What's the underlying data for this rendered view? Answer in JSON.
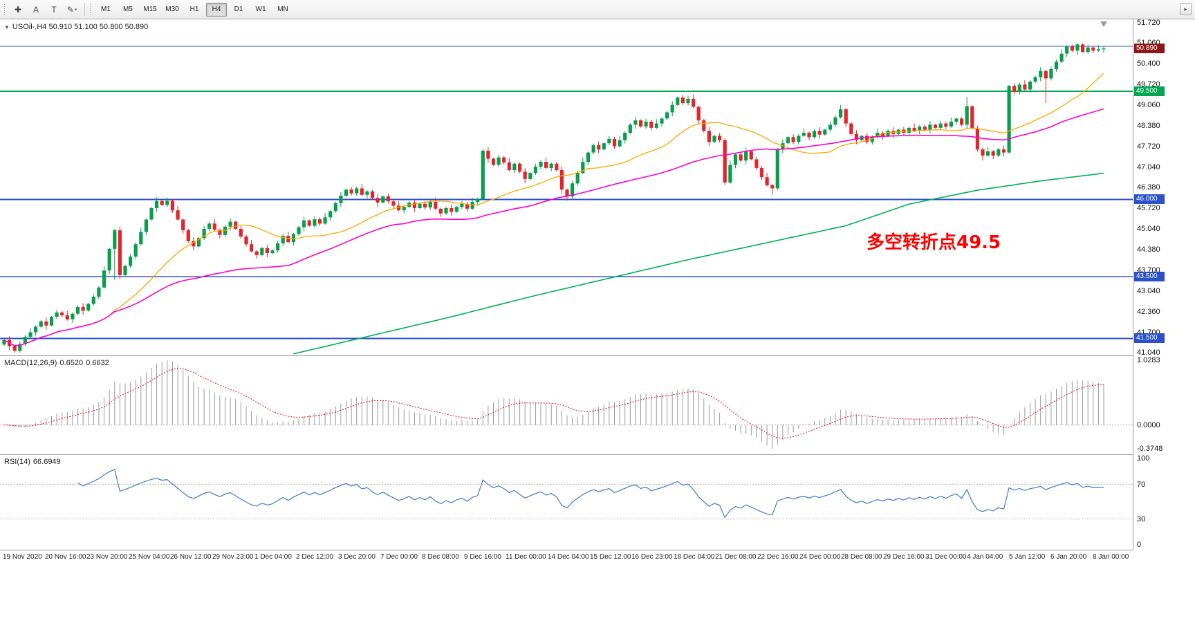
{
  "toolbar": {
    "tools": [
      {
        "name": "crosshair-tool",
        "glyph": "✚"
      },
      {
        "name": "text-a-tool",
        "glyph": "A"
      },
      {
        "name": "text-t-tool",
        "glyph": "T"
      },
      {
        "name": "shapes-tool",
        "glyph": "✎",
        "caret": "▾"
      }
    ],
    "timeframes": [
      "M1",
      "M5",
      "M15",
      "M30",
      "H1",
      "H4",
      "D1",
      "W1",
      "MN"
    ],
    "active_timeframe": "H4",
    "overflow_glyph": "▸"
  },
  "header": {
    "collapse_glyph": "▼",
    "symbol_period": "USOil-,H4",
    "ohlc": "50.910 51.100 50.800 50.890"
  },
  "annotation": {
    "text": "多空转折点49.5",
    "color": "#ff0000"
  },
  "price_axis": {
    "labels": [
      "51.720",
      "51.060",
      "50.400",
      "49.720",
      "49.060",
      "48.380",
      "47.720",
      "47.040",
      "46.380",
      "45.720",
      "45.040",
      "44.380",
      "43.700",
      "43.040",
      "42.360",
      "41.700",
      "41.040"
    ],
    "badges": [
      {
        "value": "50.890",
        "price": 50.89,
        "color": "#8b1717",
        "name": "current-price-badge"
      },
      {
        "value": "49.500",
        "price": 49.5,
        "color": "#00a651",
        "name": "level-badge-49-500"
      },
      {
        "value": "46.000",
        "price": 46.0,
        "color": "#2b50c8",
        "name": "level-badge-46-000"
      },
      {
        "value": "43.500",
        "price": 43.5,
        "color": "#2b50c8",
        "name": "level-badge-43-500"
      },
      {
        "value": "41.500",
        "price": 41.5,
        "color": "#2b50c8",
        "name": "level-badge-41-500"
      }
    ]
  },
  "main_chart": {
    "hlines": [
      {
        "price": 50.96,
        "color": "#2b50c8",
        "width": 1.2
      },
      {
        "price": 49.5,
        "color": "#00a651",
        "width": 2
      },
      {
        "price": 46.0,
        "color": "#2b50c8",
        "width": 1.6
      },
      {
        "price": 43.5,
        "color": "#2b50c8",
        "width": 1.6
      },
      {
        "price": 41.5,
        "color": "#2b50c8",
        "width": 2.4
      }
    ]
  },
  "macd": {
    "label": "MACD(12,26,9)",
    "value_main": "0.6520",
    "value_signal": "0.6632",
    "fast": 12,
    "slow": 26,
    "signal": 9,
    "axis": [
      "1.0283",
      "0.0000",
      "-0.3748"
    ]
  },
  "rsi": {
    "label": "RSI(14)",
    "value": "66.6949",
    "period": 14,
    "levels": [
      70,
      30
    ],
    "axis": [
      "100",
      "70",
      "30",
      "0"
    ]
  },
  "time_axis": [
    "19 Nov 2020",
    "20 Nov 16:00",
    "23 Nov 20:00",
    "25 Nov 04:00",
    "26 Nov 12:00",
    "29 Nov 23:00",
    "1 Dec 04:00",
    "2 Dec 12:00",
    "3 Dec 20:00",
    "7 Dec 00:00",
    "8 Dec 08:00",
    "9 Dec 16:00",
    "11 Dec 00:00",
    "14 Dec 04:00",
    "15 Dec 12:00",
    "16 Dec 23:00",
    "18 Dec 04:00",
    "21 Dec 08:00",
    "22 Dec 16:00",
    "24 Dec 00:00",
    "28 Dec 08:00",
    "29 Dec 16:00",
    "31 Dec 00:00",
    "4 Jan 04:00",
    "5 Jan 12:00",
    "6 Jan 20:00",
    "8 Jan 00:00"
  ],
  "chart_data": {
    "type": "candlestick",
    "symbol": "USOil-",
    "timeframe": "H4",
    "title": "USOil-,H4 50.910 51.100 50.800 50.890",
    "ylim": [
      41.04,
      51.72
    ],
    "first_open": 41.3,
    "closes": [
      41.45,
      41.25,
      41.1,
      41.32,
      41.55,
      41.7,
      41.88,
      42.05,
      41.92,
      42.2,
      42.34,
      42.25,
      42.12,
      42.3,
      42.52,
      42.4,
      42.62,
      42.85,
      43.15,
      43.7,
      44.4,
      45.0,
      43.55,
      43.85,
      44.15,
      44.55,
      44.95,
      45.35,
      45.72,
      45.95,
      45.82,
      45.96,
      45.65,
      45.35,
      45.0,
      44.65,
      44.48,
      44.75,
      45.05,
      45.22,
      45.02,
      44.85,
      45.12,
      45.28,
      45.05,
      44.8,
      44.55,
      44.32,
      44.2,
      44.42,
      44.26,
      44.35,
      44.58,
      44.82,
      44.62,
      44.88,
      45.1,
      45.32,
      45.15,
      45.36,
      45.22,
      45.42,
      45.62,
      45.88,
      46.12,
      46.32,
      46.2,
      46.36,
      46.15,
      46.26,
      46.05,
      45.9,
      46.1,
      45.94,
      45.8,
      45.65,
      45.76,
      45.9,
      45.72,
      45.86,
      45.74,
      45.92,
      45.7,
      45.55,
      45.72,
      45.6,
      45.76,
      45.86,
      45.7,
      45.92,
      46.02,
      47.58,
      47.32,
      47.12,
      47.36,
      47.2,
      46.95,
      47.16,
      46.9,
      46.66,
      46.86,
      47.06,
      47.22,
      47.02,
      47.16,
      46.95,
      46.32,
      46.1,
      46.52,
      46.86,
      47.22,
      47.52,
      47.76,
      47.62,
      47.82,
      47.96,
      47.72,
      47.92,
      48.16,
      48.42,
      48.56,
      48.36,
      48.52,
      48.32,
      48.46,
      48.62,
      48.82,
      49.06,
      49.3,
      49.12,
      49.26,
      49.0,
      48.56,
      48.22,
      47.86,
      48.06,
      47.92,
      46.55,
      47.12,
      47.46,
      47.26,
      47.56,
      47.3,
      47.02,
      46.72,
      46.46,
      46.36,
      47.62,
      47.82,
      48.02,
      47.86,
      48.06,
      48.16,
      48.02,
      48.22,
      48.1,
      48.26,
      48.42,
      48.66,
      48.92,
      48.46,
      48.12,
      47.92,
      48.06,
      47.86,
      48.02,
      48.16,
      48.06,
      48.22,
      48.12,
      48.26,
      48.16,
      48.32,
      48.22,
      48.36,
      48.26,
      48.42,
      48.32,
      48.46,
      48.36,
      48.52,
      48.62,
      48.42,
      49.02,
      48.3,
      47.62,
      47.42,
      47.56,
      47.42,
      47.62,
      47.52,
      49.68,
      49.48,
      49.72,
      49.56,
      49.82,
      49.96,
      50.16,
      49.92,
      50.22,
      50.46,
      50.72,
      50.96,
      50.82,
      51.02,
      50.78,
      50.92,
      50.82,
      50.86,
      50.89
    ],
    "wick_overrides": {
      "2": {
        "low": 41.04
      },
      "21": {
        "low": 43.4
      },
      "31": {
        "high": 46.06
      },
      "107": {
        "low": 45.96
      },
      "130": {
        "high": 49.36
      },
      "146": {
        "low": 46.16
      },
      "183": {
        "high": 49.32
      },
      "186": {
        "low": 47.26
      },
      "198": {
        "low": 49.12
      },
      "204": {
        "high": 51.06
      },
      "209": {
        "high": 50.95
      }
    },
    "ma_periods": {
      "orange": 21,
      "magenta": 55
    },
    "ma_green_waypoints": [
      [
        55,
        41.0
      ],
      [
        70,
        41.6
      ],
      [
        85,
        42.2
      ],
      [
        100,
        42.85
      ],
      [
        115,
        43.45
      ],
      [
        130,
        44.05
      ],
      [
        145,
        44.6
      ],
      [
        160,
        45.15
      ],
      [
        172,
        45.85
      ],
      [
        185,
        46.3
      ],
      [
        197,
        46.6
      ],
      [
        209,
        46.85
      ]
    ],
    "colors": {
      "up": "#089e4c",
      "down": "#e3242b",
      "ma_orange": "#ffa500",
      "ma_magenta": "#ff00cc",
      "ma_green": "#00b050",
      "rsi": "#3c78d8",
      "macd_hist": "#999999",
      "macd_signal": "#ff0000"
    }
  }
}
